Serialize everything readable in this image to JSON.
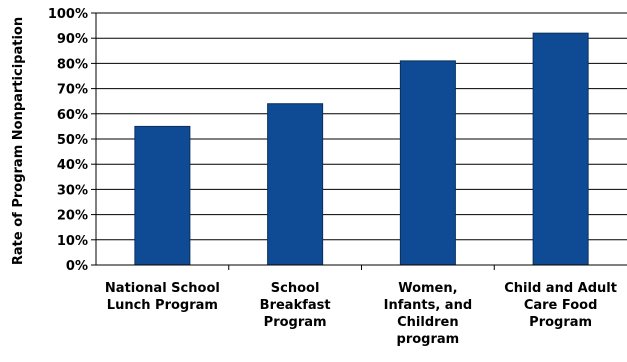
{
  "chart_data": {
    "type": "bar",
    "categories": [
      [
        "National School",
        "Lunch Program"
      ],
      [
        "School",
        "Breakfast",
        "Program"
      ],
      [
        "Women,",
        "Infants, and",
        "Children",
        "program"
      ],
      [
        "Child and Adult",
        "Care Food",
        "Program"
      ]
    ],
    "values": [
      55,
      64,
      81,
      92
    ],
    "xlabel": "",
    "ylabel": "Rate of Program Nonparticipation",
    "ylim": [
      0,
      100
    ],
    "yticks": [
      "0%",
      "10%",
      "20%",
      "30%",
      "40%",
      "50%",
      "60%",
      "70%",
      "80%",
      "90%",
      "100%"
    ],
    "grid": true,
    "bar_color": "#0e4b94",
    "bar_stroke": "#0a2f5e"
  }
}
